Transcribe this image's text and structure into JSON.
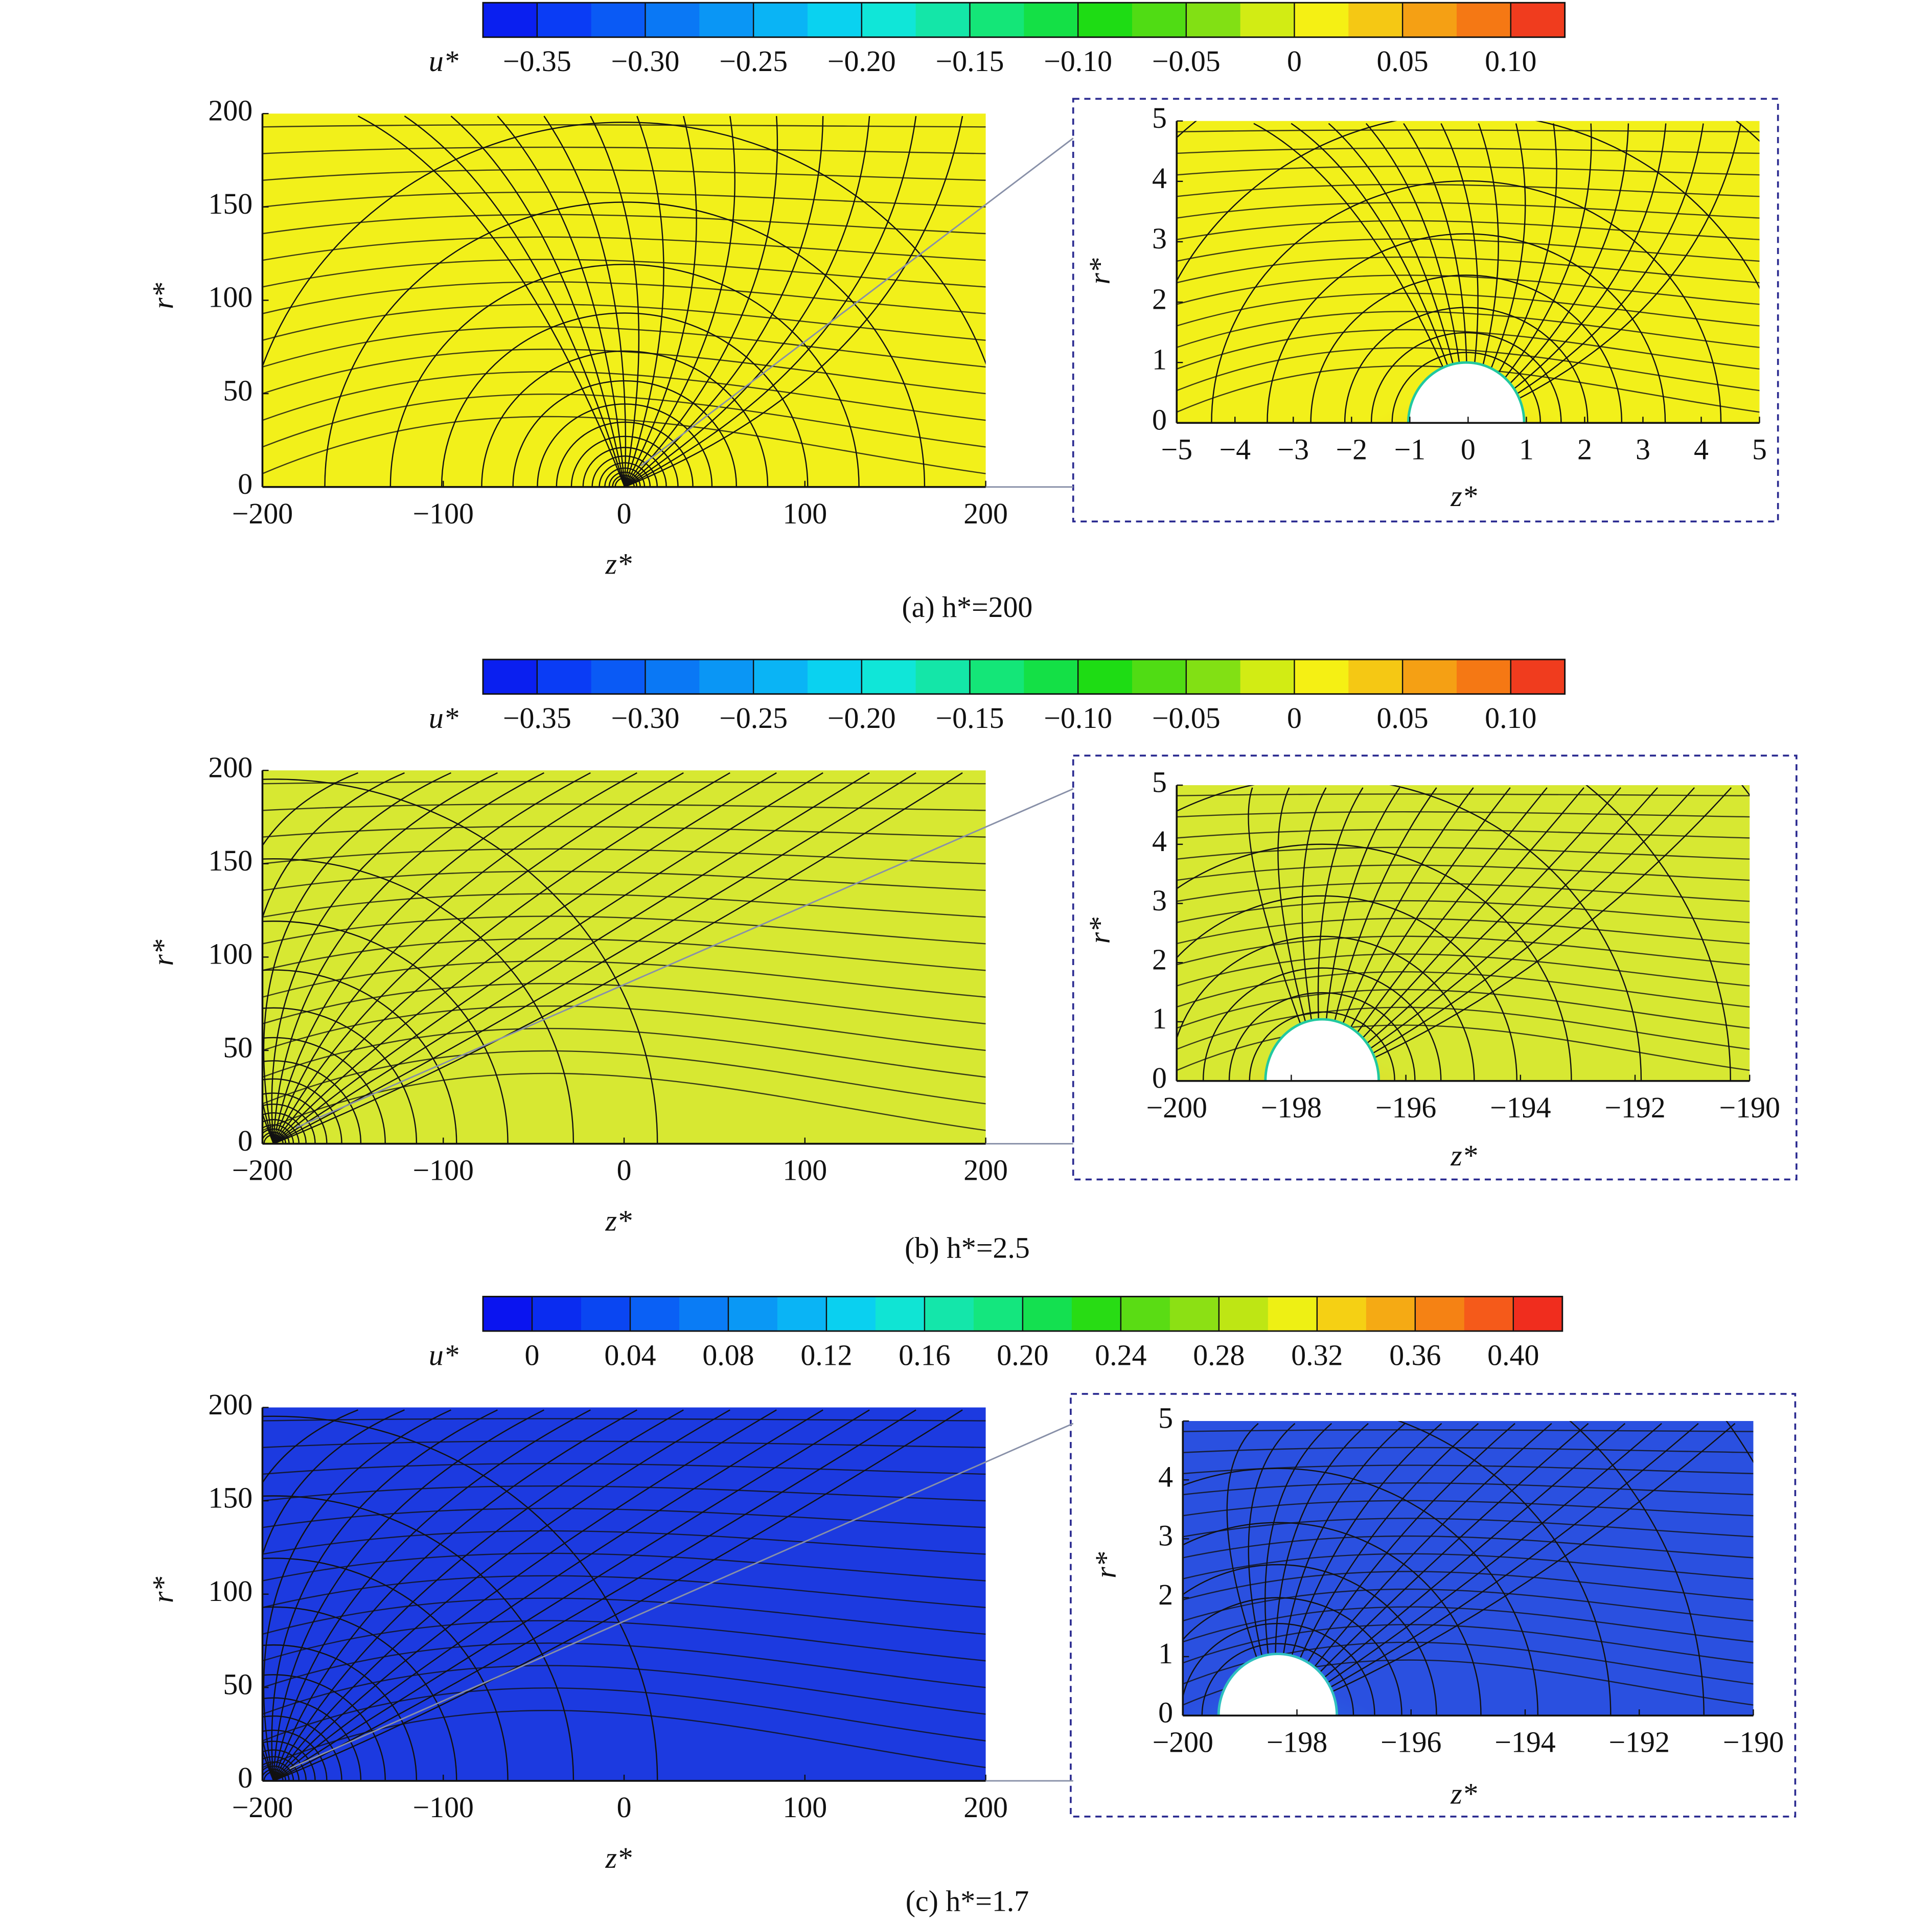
{
  "chart_data": [
    {
      "type": "streamline",
      "caption": "(a) h*=200",
      "xlabel": "z*",
      "ylabel": "r*",
      "xlim": [
        -200,
        200
      ],
      "ylim": [
        0,
        200
      ],
      "xticks": [
        {
          "value": -200,
          "label": "−200"
        },
        {
          "value": -100,
          "label": "−100"
        },
        0,
        100,
        200
      ],
      "yticks": [
        0,
        50,
        100,
        150,
        200
      ],
      "color": "#f2f01a",
      "colorbar": {
        "label": "u*",
        "clim": [
          -0.375,
          0.125
        ],
        "ticks": [
          {
            "value": -0.35,
            "label": "−0.35"
          },
          {
            "value": -0.3,
            "label": "−0.30"
          },
          {
            "value": -0.25,
            "label": "−0.25"
          },
          {
            "value": -0.2,
            "label": "−0.20"
          },
          {
            "value": -0.15,
            "label": "−0.15"
          },
          {
            "value": -0.1,
            "label": "−0.10"
          },
          {
            "value": -0.05,
            "label": "−0.05"
          },
          0,
          0.05,
          {
            "value": 0.1,
            "label": "0.10"
          }
        ],
        "colors": [
          "#0a1ff0",
          "#0a3cf5",
          "#0a5af5",
          "#0a78f5",
          "#0a96f5",
          "#0ab4f5",
          "#0ad2f0",
          "#10e6d8",
          "#14e6a8",
          "#14e678",
          "#14e046",
          "#1edc14",
          "#50dc14",
          "#82e014",
          "#d2ec14",
          "#f5f014",
          "#f5c814",
          "#f5a014",
          "#f57814",
          "#f03c1e"
        ]
      }
    },
    {
      "type": "streamline",
      "xlabel": "z*",
      "ylabel": "r*",
      "xlim": [
        -5,
        5
      ],
      "ylim": [
        0,
        5
      ],
      "xticks": [
        {
          "value": -5,
          "label": "−5"
        },
        {
          "value": -4,
          "label": "−4"
        },
        {
          "value": -3,
          "label": "−3"
        },
        {
          "value": -2,
          "label": "−2"
        },
        {
          "value": -1,
          "label": "−1"
        },
        0,
        1,
        2,
        3,
        4,
        5
      ],
      "yticks": [
        0,
        1,
        2,
        3,
        4,
        5
      ],
      "color": "#f2f01a"
    },
    {
      "type": "streamline",
      "caption": "(b) h*=2.5",
      "xlabel": "z*",
      "ylabel": "r*",
      "xlim": [
        -200,
        200
      ],
      "ylim": [
        0,
        200
      ],
      "xticks": [
        {
          "value": -200,
          "label": "−200"
        },
        {
          "value": -100,
          "label": "−100"
        },
        0,
        100,
        200
      ],
      "yticks": [
        0,
        50,
        100,
        150,
        200
      ],
      "color": "#d7e832",
      "colorbar": {
        "label": "u*",
        "clim": [
          -0.375,
          0.125
        ],
        "ticks": [
          {
            "value": -0.35,
            "label": "−0.35"
          },
          {
            "value": -0.3,
            "label": "−0.30"
          },
          {
            "value": -0.25,
            "label": "−0.25"
          },
          {
            "value": -0.2,
            "label": "−0.20"
          },
          {
            "value": -0.15,
            "label": "−0.15"
          },
          {
            "value": -0.1,
            "label": "−0.10"
          },
          {
            "value": -0.05,
            "label": "−0.05"
          },
          0,
          0.05,
          {
            "value": 0.1,
            "label": "0.10"
          }
        ],
        "colors": [
          "#0a1ff0",
          "#0a3cf5",
          "#0a5af5",
          "#0a78f5",
          "#0a96f5",
          "#0ab4f5",
          "#0ad2f0",
          "#10e6d8",
          "#14e6a8",
          "#14e678",
          "#14e046",
          "#1edc14",
          "#50dc14",
          "#82e014",
          "#d2ec14",
          "#f5f014",
          "#f5c814",
          "#f5a014",
          "#f57814",
          "#f03c1e"
        ]
      }
    },
    {
      "type": "streamline",
      "xlabel": "z*",
      "ylabel": "r*",
      "xlim": [
        -200,
        -190
      ],
      "ylim": [
        0,
        5
      ],
      "xticks": [
        {
          "value": -200,
          "label": "−200"
        },
        {
          "value": -198,
          "label": "−198"
        },
        {
          "value": -196,
          "label": "−196"
        },
        {
          "value": -194,
          "label": "−194"
        },
        {
          "value": -192,
          "label": "−192"
        },
        {
          "value": -190,
          "label": "−190"
        }
      ],
      "yticks": [
        0,
        1,
        2,
        3,
        4,
        5
      ],
      "color": "#d7e832"
    },
    {
      "type": "streamline",
      "caption": "(c) h*=1.7",
      "xlabel": "z*",
      "ylabel": "r*",
      "xlim": [
        -200,
        200
      ],
      "ylim": [
        0,
        200
      ],
      "xticks": [
        {
          "value": -200,
          "label": "−200"
        },
        {
          "value": -100,
          "label": "−100"
        },
        0,
        100,
        200
      ],
      "yticks": [
        0,
        50,
        100,
        150,
        200
      ],
      "color": "#1c3ae0",
      "colorbar": {
        "label": "u*",
        "clim": [
          -0.02,
          0.42
        ],
        "ticks": [
          0,
          0.04,
          0.08,
          0.12,
          0.16,
          {
            "value": 0.2,
            "label": "0.20"
          },
          0.24,
          0.28,
          0.32,
          0.36,
          {
            "value": 0.4,
            "label": "0.40"
          }
        ],
        "colors": [
          "#0a14f0",
          "#0a2cf0",
          "#0a46f2",
          "#0a60f5",
          "#0a7cf5",
          "#0a98f5",
          "#0ab4f5",
          "#0ad0f0",
          "#10e4d4",
          "#14e6aa",
          "#14e67e",
          "#14e050",
          "#28dc14",
          "#5adc14",
          "#8ce014",
          "#bee614",
          "#eef014",
          "#f5d014",
          "#f5aa14",
          "#f58214",
          "#f55a1a",
          "#f02d1e"
        ]
      }
    },
    {
      "type": "streamline",
      "xlabel": "z*",
      "ylabel": "r*",
      "xlim": [
        -200,
        -190
      ],
      "ylim": [
        0,
        5
      ],
      "xticks": [
        {
          "value": -200,
          "label": "−200"
        },
        {
          "value": -198,
          "label": "−198"
        },
        {
          "value": -196,
          "label": "−196"
        },
        {
          "value": -194,
          "label": "−194"
        },
        {
          "value": -192,
          "label": "−192"
        },
        {
          "value": -190,
          "label": "−190"
        }
      ],
      "yticks": [
        0,
        1,
        2,
        3,
        4,
        5
      ],
      "color": "#2a50e0"
    }
  ]
}
